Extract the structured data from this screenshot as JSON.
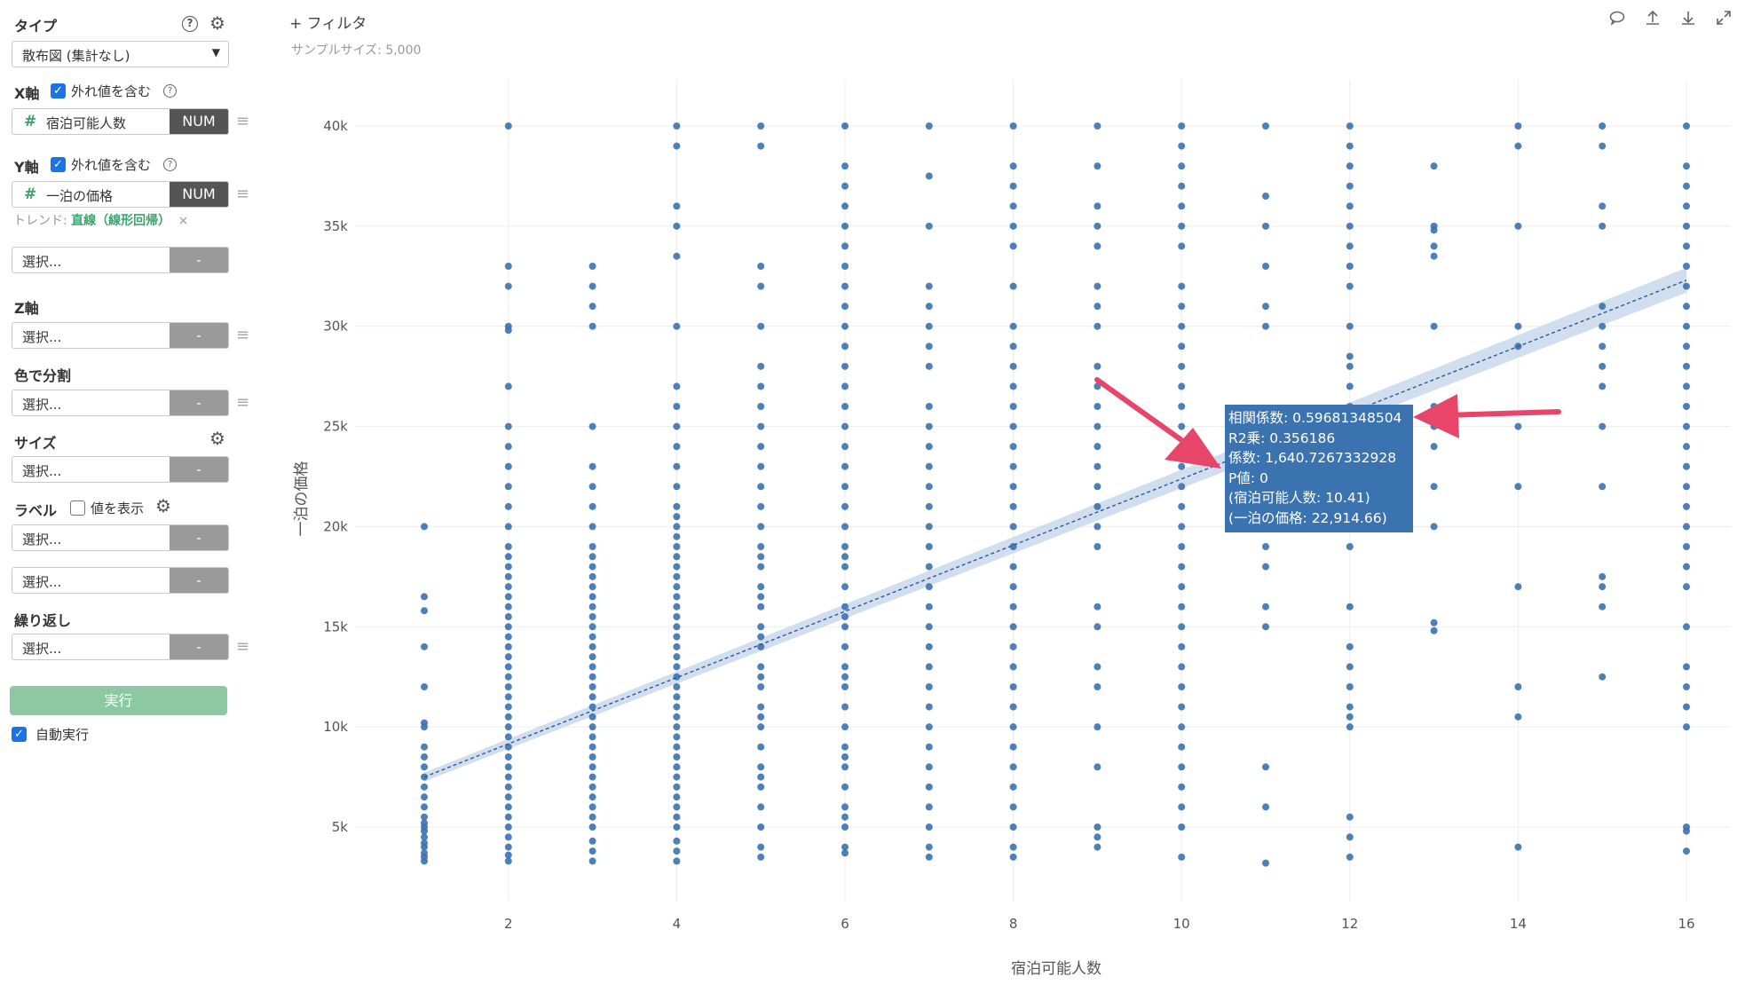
{
  "sidebar": {
    "type": {
      "title": "タイプ",
      "value": "散布図 (集計なし)"
    },
    "x_axis": {
      "title": "X軸",
      "outlier_label": "外れ値を含む",
      "field": "宿泊可能人数",
      "badge": "NUM"
    },
    "y_axis": {
      "title": "Y軸",
      "outlier_label": "外れ値を含む",
      "field": "一泊の価格",
      "badge": "NUM",
      "trend_label": "トレンド:",
      "trend_value": "直線（線形回帰）",
      "trend_remove": "×"
    },
    "extra_select": {
      "placeholder": "選択...",
      "btn": "-"
    },
    "z_axis": {
      "title": "Z軸",
      "placeholder": "選択...",
      "btn": "-"
    },
    "color_split": {
      "title": "色で分割",
      "placeholder": "選択...",
      "btn": "-"
    },
    "size": {
      "title": "サイズ",
      "placeholder": "選択...",
      "btn": "-"
    },
    "label": {
      "title": "ラベル",
      "show_values": "値を表示",
      "placeholder1": "選択...",
      "placeholder2": "選択...",
      "btn": "-"
    },
    "repeat": {
      "title": "繰り返し",
      "placeholder": "選択...",
      "btn": "-"
    },
    "run_button": "実行",
    "auto_run": "自動実行",
    "help_glyph": "?",
    "drag_glyph": "≡"
  },
  "main": {
    "filter_label": "+ フィルタ",
    "sample_size": "サンプルサイズ: 5,000",
    "toolbar_icons": [
      "comment-icon",
      "upload-icon",
      "download-icon",
      "expand-icon"
    ]
  },
  "tooltip": {
    "lines": [
      "相関係数: 0.59681348504",
      "R2乗: 0.356186",
      "係数: 1,640.7267332928",
      "P値: 0",
      "(宿泊可能人数: 10.41)",
      "(一泊の価格: 22,914.66)"
    ]
  },
  "colors": {
    "point": "#3b72b0",
    "accent_green": "#3aa46b",
    "run_button": "#8cc9a3",
    "arrow": "#e8456b",
    "trend_band": "#c9d8ec"
  },
  "chart_data": {
    "type": "scatter",
    "xlabel": "宿泊可能人数",
    "ylabel": "一泊の価格",
    "xlim": [
      1,
      16
    ],
    "ylim": [
      2000,
      42000
    ],
    "x_ticks": [
      2,
      4,
      6,
      8,
      10,
      12,
      14,
      16
    ],
    "y_ticks": [
      5000,
      10000,
      15000,
      20000,
      25000,
      30000,
      35000,
      40000
    ],
    "y_tick_labels": [
      "5k",
      "10k",
      "15k",
      "20k",
      "25k",
      "30k",
      "35k",
      "40k"
    ],
    "grid": true,
    "trend": {
      "type": "linear",
      "points": [
        [
          1,
          7500
        ],
        [
          16,
          32300
        ]
      ]
    },
    "series": [
      {
        "x": 1,
        "y": [
          3300,
          3500,
          3700,
          4000,
          4200,
          4500,
          4800,
          5000,
          5200,
          5500,
          6000,
          6500,
          7000,
          7500,
          8000,
          8500,
          9000,
          10000,
          10200,
          12000,
          14000,
          15800,
          16500,
          20000
        ]
      },
      {
        "x": 2,
        "y": [
          3300,
          3600,
          4000,
          4500,
          5000,
          5500,
          6000,
          6500,
          7000,
          7500,
          8000,
          8500,
          9000,
          9500,
          10000,
          10500,
          11000,
          11500,
          12000,
          12500,
          13000,
          13500,
          14000,
          14500,
          15000,
          15500,
          16000,
          16500,
          17000,
          17500,
          18000,
          18500,
          19000,
          20000,
          21000,
          22000,
          23000,
          24000,
          25000,
          27000,
          29800,
          30000,
          32000,
          33000,
          40000
        ]
      },
      {
        "x": 3,
        "y": [
          3300,
          3800,
          4300,
          5000,
          5500,
          6000,
          6500,
          7000,
          7500,
          8000,
          8500,
          9000,
          9500,
          10000,
          10500,
          11000,
          11500,
          12000,
          12500,
          13000,
          13500,
          14000,
          14500,
          15000,
          15500,
          16000,
          16500,
          17000,
          17500,
          18000,
          18500,
          19000,
          20000,
          21000,
          22000,
          23000,
          25000,
          30000,
          31000,
          32000,
          33000
        ]
      },
      {
        "x": 4,
        "y": [
          3300,
          3800,
          4300,
          5000,
          5500,
          6000,
          6500,
          7000,
          7500,
          8000,
          8500,
          9000,
          9500,
          10000,
          10500,
          11000,
          11500,
          12000,
          12500,
          13000,
          13500,
          14000,
          14500,
          15000,
          15500,
          16000,
          16500,
          17000,
          17500,
          18000,
          18500,
          19000,
          19500,
          20000,
          20500,
          21000,
          22000,
          23000,
          24000,
          25000,
          26000,
          27000,
          30000,
          33500,
          35000,
          36000,
          39000,
          40000
        ]
      },
      {
        "x": 5,
        "y": [
          3500,
          4000,
          5000,
          6000,
          7000,
          7500,
          8000,
          9000,
          10000,
          10500,
          11000,
          12000,
          12500,
          13000,
          14000,
          14500,
          15000,
          16000,
          16500,
          17000,
          18000,
          18500,
          19000,
          20000,
          21000,
          22000,
          23000,
          24000,
          25000,
          26000,
          27000,
          28000,
          30000,
          32000,
          33000,
          39000,
          40000
        ]
      },
      {
        "x": 6,
        "y": [
          3700,
          4000,
          5000,
          5500,
          6000,
          7000,
          8000,
          8500,
          9000,
          10000,
          11000,
          12000,
          12500,
          13000,
          14000,
          15000,
          15500,
          16000,
          17000,
          18000,
          18500,
          19000,
          20000,
          21000,
          22000,
          23000,
          24000,
          25000,
          26000,
          27000,
          28000,
          29000,
          30000,
          31000,
          32000,
          33000,
          34000,
          35000,
          36000,
          37000,
          38000,
          40000
        ]
      },
      {
        "x": 7,
        "y": [
          3500,
          4000,
          5000,
          6000,
          7000,
          8000,
          9000,
          10000,
          11000,
          12000,
          13000,
          14000,
          15000,
          16000,
          17000,
          18000,
          19000,
          20000,
          21000,
          22000,
          23000,
          24000,
          25000,
          26000,
          28000,
          29000,
          30000,
          31000,
          32000,
          35000,
          37500,
          40000
        ]
      },
      {
        "x": 8,
        "y": [
          3500,
          4000,
          5000,
          6000,
          7000,
          8000,
          9000,
          10000,
          11000,
          12000,
          13000,
          14000,
          15000,
          16000,
          17000,
          18000,
          19000,
          20000,
          21000,
          22000,
          23000,
          24000,
          25000,
          26000,
          27000,
          28000,
          29000,
          30000,
          32000,
          34000,
          35000,
          36000,
          37000,
          38000,
          40000
        ]
      },
      {
        "x": 9,
        "y": [
          4000,
          4500,
          5000,
          8000,
          10000,
          12000,
          13000,
          15000,
          16000,
          19000,
          20000,
          21000,
          22000,
          23000,
          24000,
          25000,
          26000,
          27000,
          28000,
          30000,
          31000,
          32000,
          34000,
          35000,
          36000,
          38000,
          40000
        ]
      },
      {
        "x": 10,
        "y": [
          3500,
          5000,
          6000,
          7000,
          8000,
          9000,
          10000,
          11000,
          12000,
          13000,
          14000,
          15000,
          16000,
          17000,
          18000,
          19000,
          20000,
          21000,
          22000,
          23000,
          24000,
          25000,
          26000,
          27000,
          28000,
          29000,
          30000,
          31000,
          32000,
          34000,
          35000,
          36000,
          37000,
          38000,
          39000,
          40000
        ]
      },
      {
        "x": 11,
        "y": [
          3200,
          6000,
          8000,
          15000,
          16000,
          18000,
          19000,
          20000,
          30000,
          31000,
          33000,
          35000,
          36500,
          40000
        ]
      },
      {
        "x": 12,
        "y": [
          3500,
          4500,
          5500,
          10000,
          10500,
          11000,
          12000,
          13000,
          14000,
          16000,
          19000,
          20000,
          21000,
          22000,
          23000,
          24000,
          25000,
          26000,
          27000,
          28000,
          28500,
          30000,
          32000,
          33000,
          34000,
          35000,
          36000,
          37000,
          38000,
          39000,
          40000
        ]
      },
      {
        "x": 13,
        "y": [
          14800,
          15200,
          20000,
          22000,
          24000,
          25000,
          26000,
          30000,
          33500,
          34000,
          34800,
          35000,
          38000
        ]
      },
      {
        "x": 14,
        "y": [
          4000,
          10500,
          12000,
          17000,
          22000,
          25000,
          29000,
          30000,
          35000,
          39000,
          40000
        ]
      },
      {
        "x": 15,
        "y": [
          12500,
          16000,
          17000,
          17500,
          22000,
          25000,
          27000,
          28000,
          29000,
          30000,
          31000,
          35000,
          36000,
          39000,
          40000
        ]
      },
      {
        "x": 16,
        "y": [
          3800,
          4800,
          5000,
          10000,
          11000,
          12000,
          13000,
          15000,
          17000,
          18000,
          19000,
          20000,
          21000,
          22000,
          23000,
          24000,
          25000,
          26000,
          27000,
          28000,
          29000,
          30000,
          31000,
          32000,
          33000,
          34000,
          35000,
          36000,
          37000,
          38000,
          40000
        ]
      }
    ]
  }
}
